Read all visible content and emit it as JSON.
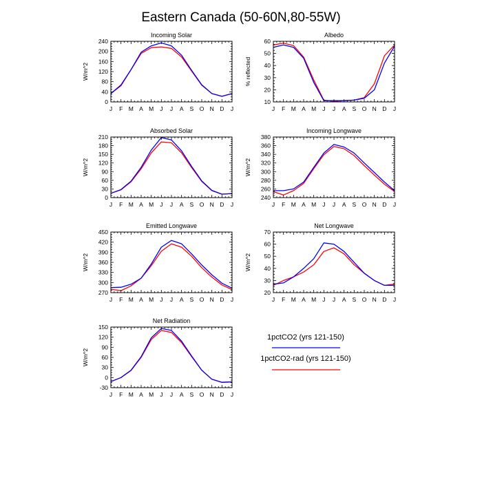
{
  "title": "Eastern Canada (50-60N,80-55W)",
  "colors": {
    "series_1": "#0000ff",
    "series_2": "#ff0000"
  },
  "legend": {
    "items": [
      {
        "label": "1pctCO2 (yrs 121-150)",
        "color": "#0000ff"
      },
      {
        "label": "1pctCO2-rad (yrs 121-150)",
        "color": "#ff0000"
      }
    ]
  },
  "chart_data": [
    {
      "type": "line",
      "title": "Incoming Solar",
      "ylabel": "W/m^2",
      "categories": [
        "J",
        "F",
        "M",
        "A",
        "M",
        "J",
        "J",
        "A",
        "S",
        "O",
        "N",
        "D",
        "J"
      ],
      "ylim": [
        0,
        240
      ],
      "yticks": [
        0,
        40,
        80,
        120,
        160,
        200,
        240
      ],
      "series": [
        {
          "name": "1pctCO2 (yrs 121-150)",
          "color": "#0000ff",
          "values": [
            33,
            67,
            128,
            197,
            222,
            234,
            222,
            185,
            125,
            68,
            33,
            22,
            33
          ]
        },
        {
          "name": "1pctCO2-rad (yrs 121-150)",
          "color": "#ff0000",
          "values": [
            33,
            64,
            128,
            192,
            215,
            218,
            212,
            178,
            122,
            66,
            33,
            22,
            33
          ]
        }
      ]
    },
    {
      "type": "line",
      "title": "Albedo",
      "ylabel": "% reflected",
      "categories": [
        "J",
        "F",
        "M",
        "A",
        "M",
        "J",
        "J",
        "A",
        "S",
        "O",
        "N",
        "D",
        "J"
      ],
      "ylim": [
        10,
        60
      ],
      "yticks": [
        10,
        20,
        30,
        40,
        50,
        60
      ],
      "series": [
        {
          "name": "1pctCO2 (yrs 121-150)",
          "color": "#0000ff",
          "values": [
            55,
            57,
            55,
            46,
            26,
            11,
            11,
            11,
            11.5,
            13,
            20,
            42,
            56
          ]
        },
        {
          "name": "1pctCO2-rad (yrs 121-150)",
          "color": "#ff0000",
          "values": [
            57,
            58.5,
            56.5,
            47,
            28,
            11.5,
            10.5,
            11,
            11.5,
            13.5,
            25,
            48,
            57
          ]
        }
      ]
    },
    {
      "type": "line",
      "title": "Absorbed Solar",
      "ylabel": "W/m^2",
      "categories": [
        "J",
        "F",
        "M",
        "A",
        "M",
        "J",
        "J",
        "A",
        "S",
        "O",
        "N",
        "D",
        "J"
      ],
      "ylim": [
        0,
        210
      ],
      "yticks": [
        0,
        30,
        60,
        90,
        120,
        150,
        180,
        210
      ],
      "series": [
        {
          "name": "1pctCO2 (yrs 121-150)",
          "color": "#0000ff",
          "values": [
            15,
            28,
            57,
            105,
            165,
            208,
            200,
            162,
            108,
            58,
            25,
            12,
            14
          ]
        },
        {
          "name": "1pctCO2-rad (yrs 121-150)",
          "color": "#ff0000",
          "values": [
            15,
            27,
            55,
            100,
            155,
            193,
            190,
            155,
            104,
            56,
            24,
            12,
            14
          ]
        }
      ]
    },
    {
      "type": "line",
      "title": "Incoming Longwave",
      "ylabel": "W/m^2",
      "categories": [
        "J",
        "F",
        "M",
        "A",
        "M",
        "J",
        "J",
        "A",
        "S",
        "O",
        "N",
        "D",
        "J"
      ],
      "ylim": [
        240,
        380
      ],
      "yticks": [
        240,
        260,
        280,
        300,
        320,
        340,
        360,
        380
      ],
      "series": [
        {
          "name": "1pctCO2 (yrs 121-150)",
          "color": "#0000ff",
          "values": [
            256,
            256,
            260,
            276,
            310,
            343,
            363,
            357,
            343,
            320,
            298,
            276,
            256
          ]
        },
        {
          "name": "1pctCO2-rad (yrs 121-150)",
          "color": "#ff0000",
          "values": [
            254,
            246,
            256,
            273,
            307,
            339,
            358,
            353,
            337,
            314,
            292,
            271,
            254
          ]
        }
      ]
    },
    {
      "type": "line",
      "title": "Emitted Longwave",
      "ylabel": "W/m^2",
      "categories": [
        "J",
        "F",
        "M",
        "A",
        "M",
        "J",
        "J",
        "A",
        "S",
        "O",
        "N",
        "D",
        "J"
      ],
      "ylim": [
        270,
        450
      ],
      "yticks": [
        270,
        300,
        330,
        360,
        390,
        420,
        450
      ],
      "series": [
        {
          "name": "1pctCO2 (yrs 121-150)",
          "color": "#0000ff",
          "values": [
            285,
            286,
            295,
            313,
            355,
            405,
            425,
            415,
            385,
            352,
            323,
            298,
            283
          ]
        },
        {
          "name": "1pctCO2-rad (yrs 121-150)",
          "color": "#ff0000",
          "values": [
            280,
            276,
            290,
            313,
            350,
            393,
            415,
            405,
            378,
            344,
            316,
            293,
            279
          ]
        }
      ]
    },
    {
      "type": "line",
      "title": "Net Longwave",
      "ylabel": "W/m^2",
      "categories": [
        "J",
        "F",
        "M",
        "A",
        "M",
        "J",
        "J",
        "A",
        "S",
        "O",
        "N",
        "D",
        "J"
      ],
      "ylim": [
        20,
        70
      ],
      "yticks": [
        20,
        30,
        40,
        50,
        60,
        70
      ],
      "series": [
        {
          "name": "1pctCO2 (yrs 121-150)",
          "color": "#0000ff",
          "values": [
            27,
            28,
            33,
            40,
            48,
            61,
            60,
            54,
            45,
            36,
            30,
            26,
            26
          ]
        },
        {
          "name": "1pctCO2-rad (yrs 121-150)",
          "color": "#ff0000",
          "values": [
            26,
            30,
            33,
            37,
            43,
            54,
            57,
            52,
            43,
            36,
            30,
            26,
            27
          ]
        }
      ]
    },
    {
      "type": "line",
      "title": "Net Radiation",
      "ylabel": "W/m^2",
      "categories": [
        "J",
        "F",
        "M",
        "A",
        "M",
        "J",
        "J",
        "A",
        "S",
        "O",
        "N",
        "D",
        "J"
      ],
      "ylim": [
        -30,
        150
      ],
      "yticks": [
        -30,
        0,
        30,
        60,
        90,
        120,
        150
      ],
      "series": [
        {
          "name": "1pctCO2 (yrs 121-150)",
          "color": "#0000ff",
          "values": [
            -12,
            0,
            22,
            62,
            118,
            146,
            140,
            108,
            64,
            22,
            -5,
            -14,
            -13
          ]
        },
        {
          "name": "1pctCO2-rad (yrs 121-150)",
          "color": "#ff0000",
          "values": [
            -12,
            0,
            21,
            60,
            113,
            140,
            134,
            104,
            62,
            22,
            -5,
            -14,
            -13
          ]
        }
      ]
    }
  ]
}
